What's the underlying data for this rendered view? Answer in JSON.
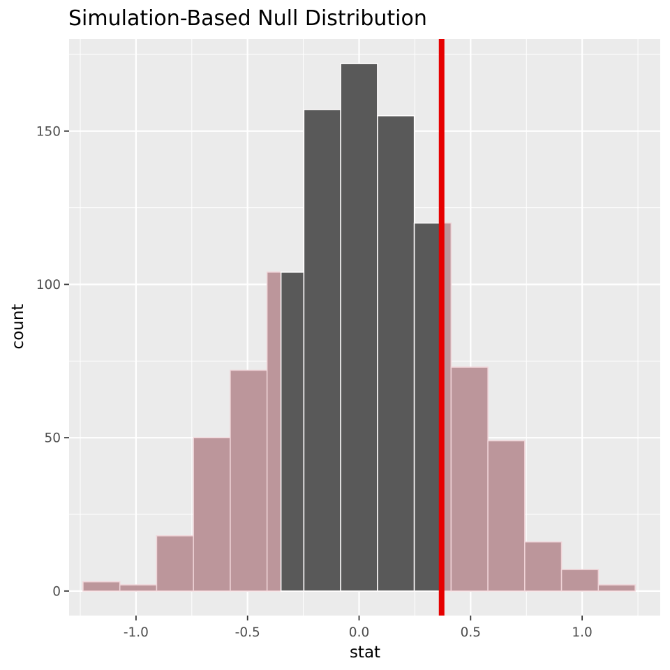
{
  "chart_data": {
    "type": "histogram",
    "title": "Simulation-Based Null Distribution",
    "xlabel": "stat",
    "ylabel": "count",
    "xlim": [
      -1.3,
      1.35
    ],
    "ylim": [
      -8,
      180
    ],
    "x_ticks": [
      -1.0,
      -0.5,
      0.0,
      0.5,
      1.0
    ],
    "x_tick_labels": [
      "-1.0",
      "-0.5",
      "0.0",
      "0.5",
      "1.0"
    ],
    "y_ticks": [
      0,
      50,
      100,
      150
    ],
    "y_tick_labels": [
      "0",
      "50",
      "100",
      "150"
    ],
    "grid": true,
    "bins": [
      {
        "x0": -1.2375,
        "x1": -1.0725,
        "count": 3
      },
      {
        "x0": -1.0725,
        "x1": -0.9075,
        "count": 2
      },
      {
        "x0": -0.9075,
        "x1": -0.7425,
        "count": 18
      },
      {
        "x0": -0.7425,
        "x1": -0.5775,
        "count": 50
      },
      {
        "x0": -0.5775,
        "x1": -0.4125,
        "count": 72
      },
      {
        "x0": -0.4125,
        "x1": -0.2475,
        "count": 104
      },
      {
        "x0": -0.2475,
        "x1": -0.0825,
        "count": 157
      },
      {
        "x0": -0.0825,
        "x1": 0.0825,
        "count": 172
      },
      {
        "x0": 0.0825,
        "x1": 0.2475,
        "count": 155
      },
      {
        "x0": 0.2475,
        "x1": 0.4125,
        "count": 120
      },
      {
        "x0": 0.4125,
        "x1": 0.5775,
        "count": 73
      },
      {
        "x0": 0.5775,
        "x1": 0.7425,
        "count": 49
      },
      {
        "x0": 0.7425,
        "x1": 0.9075,
        "count": 16
      },
      {
        "x0": 0.9075,
        "x1": 1.0725,
        "count": 7
      },
      {
        "x0": 1.0725,
        "x1": 1.2375,
        "count": 2
      }
    ],
    "shade_region": [
      -0.35,
      0.37
    ],
    "observed_stat": 0.37,
    "colors": {
      "panel": "#ebebeb",
      "grid_major": "#ffffff",
      "bar_fill": "#595959",
      "bar_stroke": "#ffffff",
      "shade_fill": "#bc969b",
      "shade_stroke": "#f0d4d8",
      "observed_line": "#e60000"
    }
  }
}
